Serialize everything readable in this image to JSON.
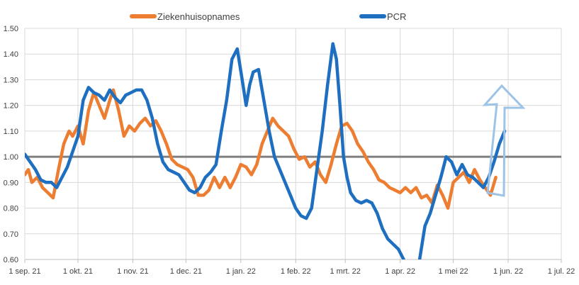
{
  "chart_data": {
    "type": "line",
    "title": "",
    "xlabel": "",
    "ylabel": "",
    "ylim": [
      0.6,
      1.5
    ],
    "y_ticks": [
      "0.60",
      "0.70",
      "0.80",
      "0.90",
      "1.00",
      "1.10",
      "1.20",
      "1.30",
      "1.40",
      "1.50"
    ],
    "x_ticks": [
      "1 sep. 21",
      "1 okt. 21",
      "1 nov. 21",
      "1 dec. 21",
      "1 jan. 22",
      "1 feb. 22",
      "1 mrt. 22",
      "1 apr. 22",
      "1 mei 22",
      "1 jun. 22",
      "1 jul. 22"
    ],
    "grid": true,
    "legend_position": "top",
    "reference_line": 1.0,
    "reference_color": "#7f7f7f",
    "annotation": "arrow-up",
    "series": [
      {
        "name": "Ziekenhuisopnames",
        "color": "#ED7D31",
        "x": [
          "2021-09-01",
          "2021-09-03",
          "2021-09-05",
          "2021-09-08",
          "2021-09-11",
          "2021-09-14",
          "2021-09-17",
          "2021-09-20",
          "2021-09-23",
          "2021-09-26",
          "2021-09-28",
          "2021-10-01",
          "2021-10-04",
          "2021-10-07",
          "2021-10-10",
          "2021-10-13",
          "2021-10-16",
          "2021-10-19",
          "2021-10-21",
          "2021-10-24",
          "2021-10-27",
          "2021-10-30",
          "2021-11-02",
          "2021-11-05",
          "2021-11-08",
          "2021-11-11",
          "2021-11-14",
          "2021-11-17",
          "2021-11-20",
          "2021-11-23",
          "2021-11-26",
          "2021-11-29",
          "2021-12-02",
          "2021-12-05",
          "2021-12-08",
          "2021-12-11",
          "2021-12-14",
          "2021-12-17",
          "2021-12-20",
          "2021-12-23",
          "2021-12-26",
          "2021-12-29",
          "2022-01-01",
          "2022-01-04",
          "2022-01-07",
          "2022-01-10",
          "2022-01-13",
          "2022-01-16",
          "2022-01-19",
          "2022-01-22",
          "2022-01-25",
          "2022-01-28",
          "2022-01-31",
          "2022-02-03",
          "2022-02-06",
          "2022-02-09",
          "2022-02-12",
          "2022-02-15",
          "2022-02-18",
          "2022-02-21",
          "2022-02-24",
          "2022-02-27",
          "2022-03-02",
          "2022-03-05",
          "2022-03-08",
          "2022-03-11",
          "2022-03-14",
          "2022-03-17",
          "2022-03-20",
          "2022-03-23",
          "2022-03-26",
          "2022-03-29",
          "2022-04-01",
          "2022-04-04",
          "2022-04-07",
          "2022-04-10",
          "2022-04-13",
          "2022-04-16",
          "2022-04-19",
          "2022-04-22",
          "2022-04-25",
          "2022-04-28",
          "2022-05-01",
          "2022-05-04",
          "2022-05-07",
          "2022-05-10",
          "2022-05-13",
          "2022-05-16",
          "2022-05-19",
          "2022-05-22",
          "2022-05-25"
        ],
        "values": [
          0.93,
          0.95,
          0.9,
          0.92,
          0.88,
          0.86,
          0.84,
          0.95,
          1.05,
          1.1,
          1.08,
          1.12,
          1.05,
          1.18,
          1.25,
          1.2,
          1.15,
          1.22,
          1.26,
          1.18,
          1.08,
          1.12,
          1.1,
          1.13,
          1.15,
          1.12,
          1.14,
          1.1,
          1.05,
          0.99,
          0.97,
          0.96,
          0.95,
          0.92,
          0.85,
          0.85,
          0.87,
          0.92,
          0.88,
          0.92,
          0.88,
          0.92,
          0.97,
          0.96,
          0.93,
          0.97,
          1.05,
          1.1,
          1.15,
          1.12,
          1.1,
          1.08,
          1.03,
          0.99,
          1.0,
          0.96,
          0.98,
          0.93,
          0.9,
          0.97,
          1.05,
          1.12,
          1.13,
          1.1,
          1.05,
          1.02,
          0.98,
          0.95,
          0.91,
          0.9,
          0.88,
          0.87,
          0.86,
          0.88,
          0.86,
          0.88,
          0.84,
          0.85,
          0.82,
          0.89,
          0.85,
          0.8,
          0.9,
          0.92,
          0.94,
          0.9,
          0.95,
          0.91,
          0.88,
          0.85,
          0.92
        ]
      },
      {
        "name": "PCR",
        "color": "#1F6FC0",
        "x": [
          "2021-09-01",
          "2021-09-04",
          "2021-09-07",
          "2021-09-10",
          "2021-09-13",
          "2021-09-16",
          "2021-09-19",
          "2021-09-22",
          "2021-09-25",
          "2021-09-28",
          "2021-10-01",
          "2021-10-04",
          "2021-10-07",
          "2021-10-10",
          "2021-10-13",
          "2021-10-16",
          "2021-10-19",
          "2021-10-22",
          "2021-10-25",
          "2021-10-28",
          "2021-10-31",
          "2021-11-03",
          "2021-11-06",
          "2021-11-09",
          "2021-11-12",
          "2021-11-15",
          "2021-11-18",
          "2021-11-21",
          "2021-11-24",
          "2021-11-27",
          "2021-11-30",
          "2021-12-03",
          "2021-12-06",
          "2021-12-09",
          "2021-12-12",
          "2021-12-15",
          "2021-12-18",
          "2021-12-21",
          "2021-12-24",
          "2021-12-27",
          "2021-12-30",
          "2022-01-02",
          "2022-01-04",
          "2022-01-06",
          "2022-01-08",
          "2022-01-11",
          "2022-01-14",
          "2022-01-17",
          "2022-01-20",
          "2022-01-23",
          "2022-01-26",
          "2022-01-29",
          "2022-02-01",
          "2022-02-04",
          "2022-02-07",
          "2022-02-10",
          "2022-02-13",
          "2022-02-16",
          "2022-02-19",
          "2022-02-22",
          "2022-02-24",
          "2022-02-26",
          "2022-02-28",
          "2022-03-02",
          "2022-03-04",
          "2022-03-07",
          "2022-03-10",
          "2022-03-13",
          "2022-03-16",
          "2022-03-19",
          "2022-03-22",
          "2022-03-25",
          "2022-03-28",
          "2022-03-31",
          "2022-04-03",
          "2022-04-06",
          "2022-04-09",
          "2022-04-12",
          "2022-04-15",
          "2022-04-18",
          "2022-04-21",
          "2022-04-24",
          "2022-04-27",
          "2022-04-30",
          "2022-05-03",
          "2022-05-06",
          "2022-05-09",
          "2022-05-12",
          "2022-05-15",
          "2022-05-18",
          "2022-05-21",
          "2022-05-24",
          "2022-05-27",
          "2022-05-30"
        ],
        "values": [
          1.01,
          0.98,
          0.95,
          0.91,
          0.9,
          0.9,
          0.88,
          0.92,
          0.96,
          1.02,
          1.08,
          1.22,
          1.27,
          1.25,
          1.24,
          1.22,
          1.26,
          1.23,
          1.21,
          1.24,
          1.25,
          1.26,
          1.26,
          1.22,
          1.15,
          1.05,
          0.98,
          0.95,
          0.94,
          0.93,
          0.9,
          0.87,
          0.86,
          0.88,
          0.92,
          0.94,
          0.97,
          1.1,
          1.22,
          1.38,
          1.42,
          1.29,
          1.2,
          1.28,
          1.33,
          1.34,
          1.22,
          1.1,
          1.0,
          0.95,
          0.9,
          0.85,
          0.8,
          0.77,
          0.76,
          0.8,
          0.95,
          1.1,
          1.28,
          1.44,
          1.38,
          1.2,
          1.0,
          0.92,
          0.86,
          0.83,
          0.82,
          0.83,
          0.82,
          0.78,
          0.72,
          0.68,
          0.66,
          0.64,
          0.6,
          0.55,
          0.52,
          0.6,
          0.73,
          0.78,
          0.85,
          0.92,
          1.0,
          0.98,
          0.93,
          0.97,
          0.93,
          0.92,
          0.9,
          0.88,
          0.92,
          0.98,
          1.05,
          1.1
        ]
      }
    ]
  }
}
